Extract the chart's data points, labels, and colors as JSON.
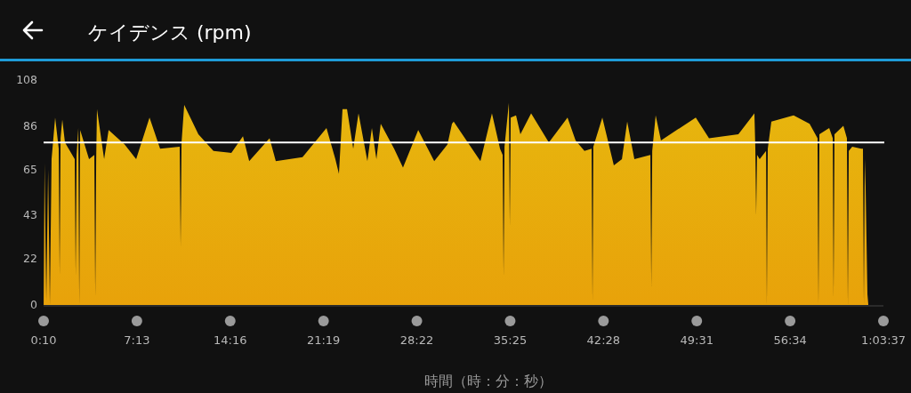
{
  "chart_data": {
    "type": "area",
    "title": "ケイデンス (rpm)",
    "xlabel": "時間（時：分：秒）",
    "xlim": [
      0.1667,
      63.6167
    ],
    "xticks": [
      {
        "value": 0.1667,
        "label": "0:10"
      },
      {
        "value": 7.2167,
        "label": "7:13"
      },
      {
        "value": 14.2667,
        "label": "14:16"
      },
      {
        "value": 21.3167,
        "label": "21:19"
      },
      {
        "value": 28.3667,
        "label": "28:22"
      },
      {
        "value": 35.4167,
        "label": "35:25"
      },
      {
        "value": 42.4667,
        "label": "42:28"
      },
      {
        "value": 49.5167,
        "label": "49:31"
      },
      {
        "value": 56.5667,
        "label": "56:34"
      },
      {
        "value": 63.6167,
        "label": "1:03:37"
      }
    ],
    "ylim": [
      0,
      108
    ],
    "yticks": [
      0,
      22,
      43,
      65,
      86,
      108
    ],
    "grid": false,
    "ref_lines": [
      {
        "axis": "y",
        "value": 78,
        "color": "#ffffff"
      }
    ],
    "series": [
      {
        "color": "#e8a20a",
        "x": [
          0.17,
          0.24,
          0.37,
          0.51,
          0.64,
          0.77,
          1.04,
          1.31,
          1.38,
          1.45,
          1.58,
          1.78,
          2.52,
          2.59,
          2.66,
          2.79,
          2.86,
          2.93,
          3.6,
          4.0,
          4.07,
          4.14,
          4.2,
          4.74,
          5.08,
          6.29,
          7.16,
          8.17,
          8.97,
          10.45,
          10.52,
          10.59,
          10.79,
          11.86,
          13.0,
          14.35,
          15.23,
          15.7,
          17.24,
          17.71,
          19.73,
          21.54,
          22.21,
          22.48,
          22.75,
          23.09,
          23.56,
          23.96,
          24.63,
          24.97,
          25.31,
          25.64,
          26.65,
          27.32,
          28.47,
          29.68,
          30.68,
          31.02,
          31.15,
          33.17,
          34.04,
          34.65,
          34.85,
          34.92,
          34.99,
          35.32,
          35.39,
          35.46,
          35.86,
          36.19,
          37.0,
          38.34,
          39.75,
          40.36,
          41.03,
          41.57,
          41.64,
          41.7,
          42.38,
          43.25,
          43.86,
          44.26,
          44.8,
          46.01,
          46.08,
          46.15,
          46.41,
          46.81,
          49.44,
          50.44,
          52.66,
          53.87,
          53.94,
          54.0,
          54.07,
          54.27,
          54.75,
          54.81,
          54.88,
          55.15,
          56.83,
          58.04,
          58.64,
          58.71,
          58.78,
          59.52,
          59.79,
          59.85,
          59.92,
          60.59,
          60.86,
          60.93,
          61.0,
          61.26,
          61.94,
          62.07,
          62.14,
          62.21,
          62.27,
          62.41,
          62.48
        ],
        "values": [
          0,
          68,
          2,
          65,
          0,
          70,
          90,
          75,
          14,
          80,
          89,
          78,
          70,
          14,
          72,
          85,
          0,
          84,
          70,
          72,
          4,
          70,
          94,
          70,
          84,
          77,
          70,
          90,
          75,
          76,
          28,
          78,
          96,
          82,
          74,
          73,
          81,
          69,
          80,
          69,
          71,
          85,
          70,
          63,
          94,
          94,
          75,
          92,
          69,
          85,
          70,
          87,
          75,
          66,
          84,
          69,
          77,
          87,
          88,
          69,
          92,
          75,
          72,
          14,
          76,
          97,
          38,
          90,
          91,
          82,
          92,
          78,
          90,
          79,
          74,
          75,
          2,
          76,
          90,
          67,
          70,
          88,
          70,
          72,
          9,
          74,
          91,
          79,
          90,
          80,
          82,
          92,
          75,
          43,
          72,
          70,
          74,
          0,
          75,
          88,
          91,
          87,
          80,
          0,
          82,
          85,
          80,
          3,
          82,
          86,
          80,
          0,
          74,
          76,
          75,
          75,
          0,
          70,
          57,
          5,
          0
        ]
      }
    ]
  }
}
